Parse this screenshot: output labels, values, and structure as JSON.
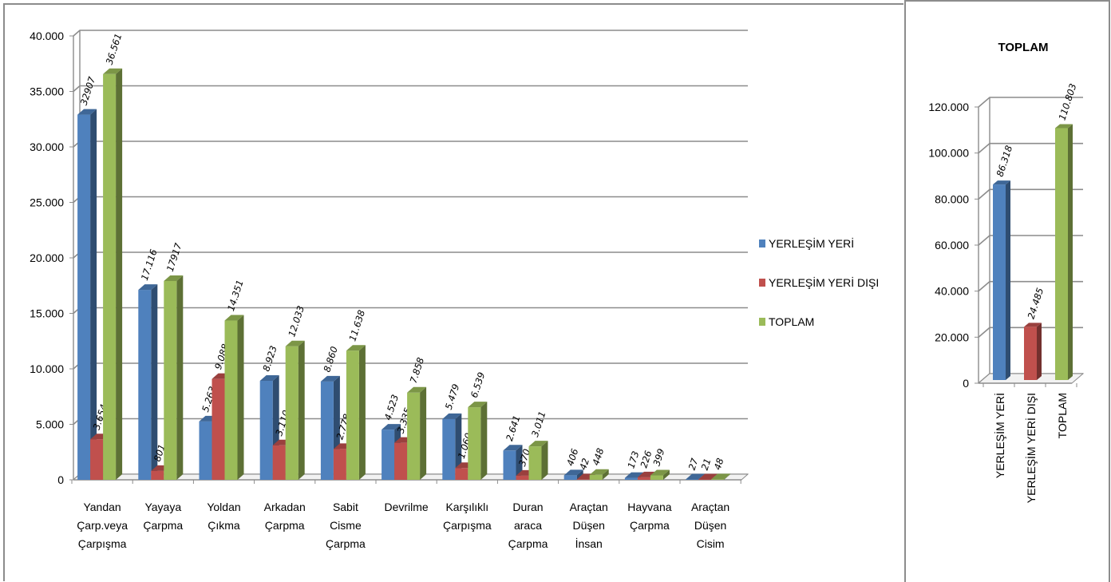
{
  "chart_data": [
    {
      "type": "bar",
      "title": "",
      "xlabel": "",
      "ylabel": "",
      "ylim": [
        0,
        40000
      ],
      "yticks": [
        "0",
        "5.000",
        "10.000",
        "15.000",
        "20.000",
        "25.000",
        "30.000",
        "35.000",
        "40.000"
      ],
      "grid": true,
      "legend_position": "right",
      "categories": [
        [
          "Yandan",
          "Çarp.veya",
          "Çarpışma"
        ],
        [
          "Yayaya",
          "Çarpma"
        ],
        [
          "Yoldan",
          "Çıkma"
        ],
        [
          "Arkadan",
          "Çarpma"
        ],
        [
          "Sabit",
          "Cisme",
          "Çarpma"
        ],
        [
          "Devrilme"
        ],
        [
          "Karşılıklı",
          "Çarpışma"
        ],
        [
          "Duran",
          "araca",
          "Çarpma"
        ],
        [
          "Araçtan",
          "Düşen",
          "İnsan"
        ],
        [
          "Hayvana",
          "Çarpma"
        ],
        [
          "Araçtan",
          "Düşen",
          "Cisim"
        ]
      ],
      "series": [
        {
          "name": "YERLEŞİM YERİ",
          "color": "#4f81bd",
          "values": [
            32907,
            17116,
            5263,
            8923,
            8860,
            4523,
            5479,
            2641,
            406,
            173,
            27
          ],
          "labels": [
            "32907",
            "17.116",
            "5.263",
            "8.923",
            "8.860",
            "4.523",
            "5.479",
            "2.641",
            "406",
            "173",
            "27"
          ]
        },
        {
          "name": "YERLEŞİM YERİ DIŞI",
          "color": "#c0504d",
          "values": [
            3654,
            801,
            9088,
            3110,
            2778,
            3335,
            1060,
            370,
            42,
            226,
            21
          ],
          "labels": [
            "3.654",
            "801",
            "9.088",
            "3.110",
            "2.778",
            "3.335",
            "1.060",
            "370",
            "42",
            "226",
            "21"
          ]
        },
        {
          "name": "TOPLAM",
          "color": "#9bbb59",
          "values": [
            36561,
            17917,
            14351,
            12033,
            11638,
            7858,
            6539,
            3011,
            448,
            399,
            48
          ],
          "labels": [
            "36.561",
            "17917",
            "14.351",
            "12.033",
            "11.638",
            "7.858",
            "6.539",
            "3.011",
            "448",
            "399",
            "48"
          ]
        }
      ]
    },
    {
      "type": "bar",
      "title": "TOPLAM",
      "xlabel": "",
      "ylabel": "",
      "ylim": [
        0,
        120000
      ],
      "yticks": [
        "0",
        "20.000",
        "40.000",
        "60.000",
        "80.000",
        "100.000",
        "120.000"
      ],
      "grid": true,
      "categories": [
        "YERLEŞİM YERİ",
        "YERLEŞİM YERİ DIŞI",
        "TOPLAM"
      ],
      "values": [
        86318,
        24485,
        110803
      ],
      "labels": [
        "86.318",
        "24.485",
        "110.803"
      ],
      "colors": [
        "#4f81bd",
        "#c0504d",
        "#9bbb59"
      ]
    }
  ]
}
